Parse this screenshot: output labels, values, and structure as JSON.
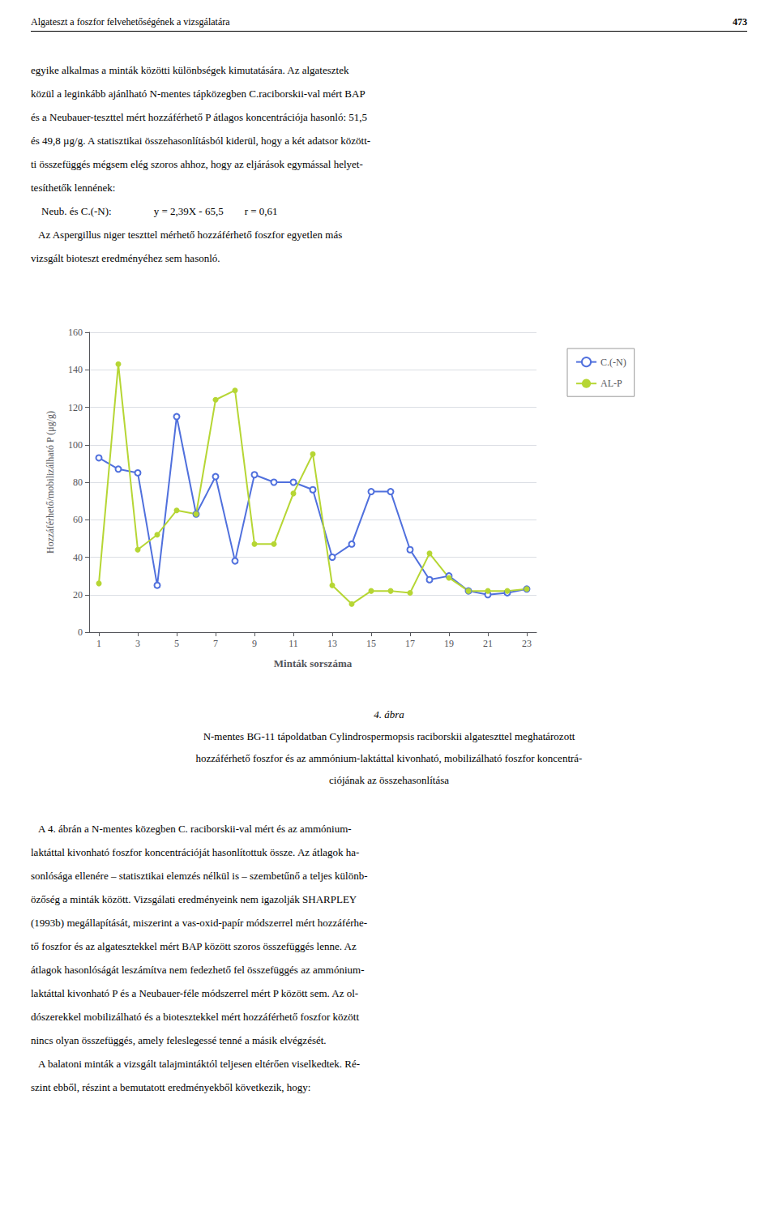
{
  "chart_data": {
    "type": "line",
    "header_left": "Algateszt a foszfor felvehetőségének a vizsgálatára",
    "header_right": "473",
    "text_above": [
      "egyike alkalmas a minták közötti különbségek kimutatására. Az algatesztek",
      "közül a leginkább ajánlható N-mentes tápközegben C.raciborskii-val mért BAP",
      "és a Neubauer-teszttel mért hozzáférhető P átlagos koncentrációja hasonló: 51,5",
      "és 49,8 µg/g. A statisztikai összehasonlításból kiderül, hogy a két adatsor között-",
      "ti összefüggés mégsem elég szoros ahhoz, hogy az eljárások egymással helyet-",
      "tesíthetők lennének:",
      "    Neub. és C.(-N):                y = 2,39X - 65,5        r = 0,61",
      "   Az Aspergillus niger teszttel mérhető hozzáférhető foszfor egyetlen más",
      "vizsgált bioteszt eredményéhez sem hasonló."
    ],
    "caption": [
      "4. ábra",
      "N-mentes BG-11 tápoldatban Cylindrospermopsis raciborskii algateszttel meghatározott",
      "hozzáférhető foszfor és az ammónium-laktáttal kivonható, mobilizálható foszfor koncentrá-",
      "ciójának az összehasonlítása"
    ],
    "text_below": [
      "   A 4. ábrán a N-mentes közegben C. raciborskii-val mért és az ammónium-",
      "laktáttal kivonható foszfor koncentrációját hasonlítottuk össze. Az átlagok ha-",
      "sonlósága ellenére – statisztikai elemzés nélkül is – szembetűnő a teljes különb-",
      "özőség a minták között. Vizsgálati eredményeink nem igazolják SHARPLEY",
      "(1993b) megállapítását, miszerint a vas-oxid-papír módszerrel mért hozzáférhe-",
      "tő foszfor és az algatesztekkel mért BAP között szoros összefüggés lenne. Az",
      "átlagok hasonlóságát leszámítva nem fedezhető fel összefüggés az ammónium-",
      "laktáttal kivonható P és a Neubauer-féle módszerrel mért P között sem. Az ol-",
      "dószerekkel mobilizálható és a biotesztekkel mért hozzáférhető foszfor között",
      "nincs olyan összefüggés, amely feleslegessé tenné a másik elvégzését.",
      "   A balatoni minták a vizsgált talajmintáktól teljesen eltérően viselkedtek. Ré-",
      "szint ebből, részint a bemutatott eredményekből következik, hogy:"
    ],
    "xlabel": "Minták sorszáma",
    "ylabel": "Hozzáférhető/mobilizálható P (μg/g)",
    "x": [
      1,
      2,
      3,
      4,
      5,
      6,
      7,
      8,
      9,
      10,
      11,
      12,
      13,
      14,
      15,
      16,
      17,
      18,
      19,
      20,
      21,
      22,
      23
    ],
    "series": [
      {
        "name": "C.(-N)",
        "marker": "open_circle",
        "values": [
          93,
          87,
          85,
          25,
          115,
          63,
          83,
          38,
          84,
          80,
          80,
          76,
          40,
          47,
          75,
          75,
          44,
          28,
          30,
          22,
          20,
          21,
          23
        ]
      },
      {
        "name": "AL-P",
        "marker": "filled_circle",
        "values": [
          26,
          143,
          44,
          52,
          65,
          63,
          124,
          129,
          47,
          47,
          74,
          95,
          25,
          15,
          22,
          22,
          21,
          42,
          29,
          22,
          22,
          22,
          23
        ]
      }
    ],
    "xlim": [
      0.5,
      23.5
    ],
    "xticks": [
      1,
      3,
      5,
      7,
      9,
      11,
      13,
      15,
      17,
      19,
      21,
      23
    ],
    "ylim": [
      0,
      160
    ],
    "yticks": [
      0,
      20,
      40,
      60,
      80,
      100,
      120,
      140,
      160
    ],
    "grid": "y",
    "legend": "right"
  }
}
